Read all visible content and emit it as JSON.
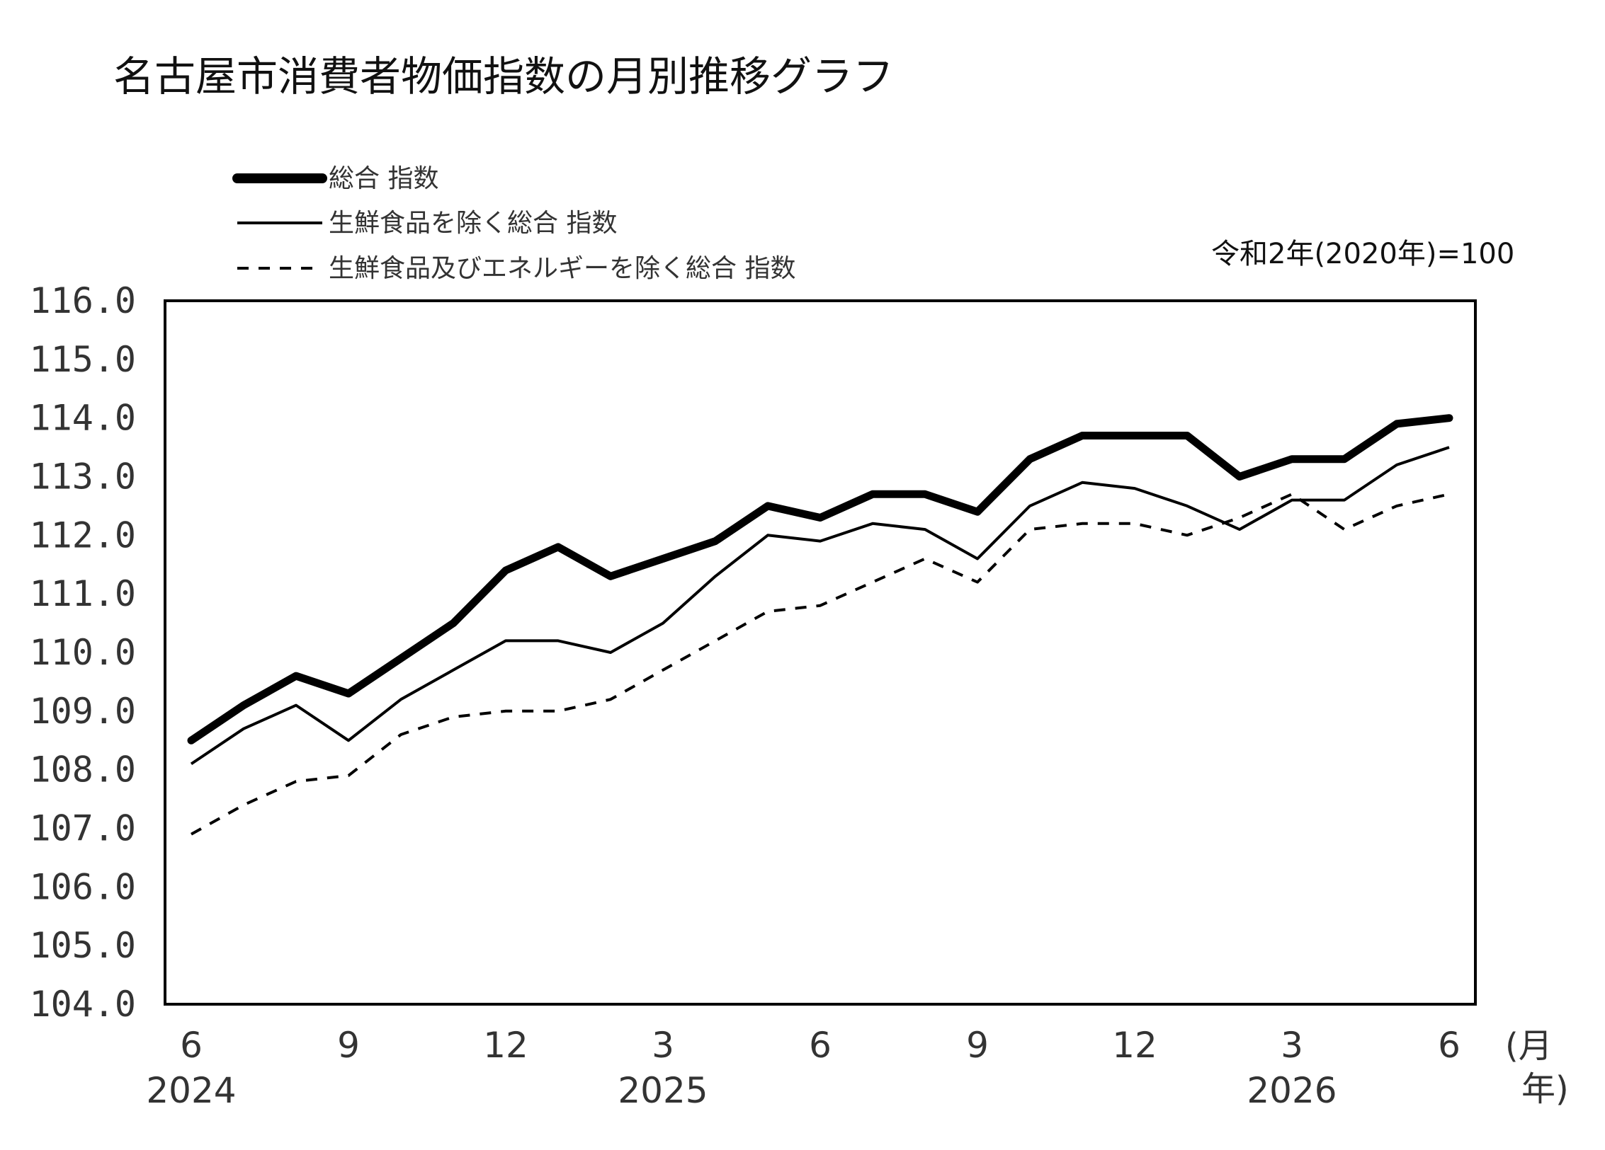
{
  "title": "名古屋市消費者物価指数の月別推移グラフ",
  "base_note": "令和2年(2020年)=100",
  "unit_month": "(月",
  "unit_year": "年)",
  "chart_data": {
    "type": "line",
    "title": "名古屋市消費者物価指数の月別推移グラフ",
    "ylim": [
      104.0,
      116.0
    ],
    "y_ticks": [
      "116.0",
      "115.0",
      "114.0",
      "113.0",
      "112.0",
      "111.0",
      "110.0",
      "109.0",
      "108.0",
      "107.0",
      "106.0",
      "105.0",
      "104.0"
    ],
    "x": [
      "2024-06",
      "2024-07",
      "2024-08",
      "2024-09",
      "2024-10",
      "2024-11",
      "2024-12",
      "2025-01",
      "2025-02",
      "2025-03",
      "2025-04",
      "2025-05",
      "2025-06",
      "2025-07",
      "2025-08",
      "2025-09",
      "2025-10",
      "2025-11",
      "2025-12",
      "2026-01",
      "2026-02",
      "2026-03",
      "2026-04",
      "2026-05",
      "2026-06"
    ],
    "x_tick_labels": [
      {
        "month_index": 0,
        "label": "6"
      },
      {
        "month_index": 3,
        "label": "9"
      },
      {
        "month_index": 6,
        "label": "12"
      },
      {
        "month_index": 9,
        "label": "3"
      },
      {
        "month_index": 12,
        "label": "6"
      },
      {
        "month_index": 15,
        "label": "9"
      },
      {
        "month_index": 18,
        "label": "12"
      },
      {
        "month_index": 21,
        "label": "3"
      },
      {
        "month_index": 24,
        "label": "6"
      }
    ],
    "year_labels": [
      {
        "month_index": 0,
        "label": "2024"
      },
      {
        "month_index": 9,
        "label": "2025"
      },
      {
        "month_index": 21,
        "label": "2026"
      }
    ],
    "grid": false,
    "legend_position": "top-left",
    "series": [
      {
        "name": "総合 指数",
        "style": "thick",
        "values": [
          108.5,
          109.1,
          109.6,
          109.3,
          109.9,
          110.5,
          111.4,
          111.8,
          111.3,
          111.6,
          111.9,
          112.5,
          112.3,
          112.7,
          112.7,
          112.4,
          113.3,
          113.7,
          113.7,
          113.7,
          113.0,
          113.3,
          113.3,
          113.9,
          114.0
        ]
      },
      {
        "name": "生鮮食品を除く総合 指数",
        "style": "thin",
        "values": [
          108.1,
          108.7,
          109.1,
          108.5,
          109.2,
          109.7,
          110.2,
          110.2,
          110.0,
          110.5,
          111.3,
          112.0,
          111.9,
          112.2,
          112.1,
          111.6,
          112.5,
          112.9,
          112.8,
          112.5,
          112.1,
          112.6,
          112.6,
          113.2,
          113.5
        ]
      },
      {
        "name": "生鮮食品及びエネルギーを除く総合 指数",
        "style": "dashed",
        "values": [
          106.9,
          107.4,
          107.8,
          107.9,
          108.6,
          108.9,
          109.0,
          109.0,
          109.2,
          109.7,
          110.2,
          110.7,
          110.8,
          111.2,
          111.6,
          111.2,
          112.1,
          112.2,
          112.2,
          112.0,
          112.3,
          112.7,
          112.1,
          112.5,
          112.7
        ]
      }
    ],
    "colors": {
      "line": "#000000",
      "text": "#333333"
    }
  }
}
